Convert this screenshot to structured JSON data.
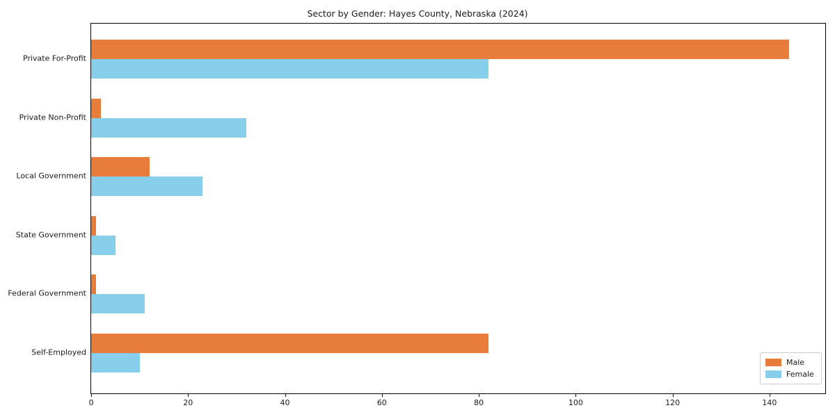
{
  "chart_data": {
    "type": "bar",
    "orientation": "horizontal",
    "title": "Sector by Gender: Hayes County, Nebraska (2024)",
    "categories": [
      "Private For-Profit",
      "Private Non-Profit",
      "Local Government",
      "State Government",
      "Federal Government",
      "Self-Employed"
    ],
    "series": [
      {
        "name": "Male",
        "color": "#E87D3B",
        "values": [
          144,
          2,
          12,
          1,
          1,
          82
        ]
      },
      {
        "name": "Female",
        "color": "#87CEEB",
        "values": [
          82,
          32,
          23,
          5,
          11,
          10
        ]
      }
    ],
    "x_ticks": [
      0,
      20,
      40,
      60,
      80,
      100,
      120,
      140
    ],
    "xlim": [
      0,
      151.5
    ],
    "xlabel": "",
    "ylabel": "",
    "grid": false,
    "legend_position": "lower right",
    "axis_color": "#000000",
    "background_color": "#ffffff"
  }
}
